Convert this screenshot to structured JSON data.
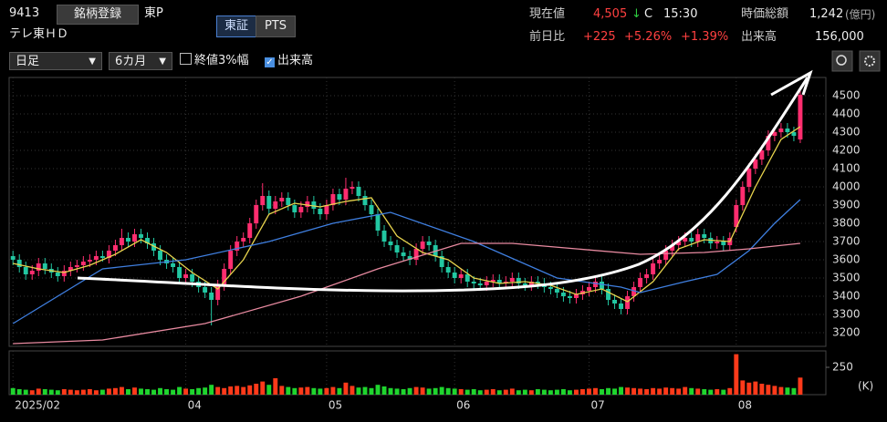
{
  "header": {
    "code": "9413",
    "register": "銘柄登録",
    "market": "東P",
    "name": "テレ東ＨＤ",
    "tab_tse": "東証",
    "tab_pts": "PTS",
    "price_label": "現在値",
    "price": "4,505",
    "arrow": "↓",
    "close_mark": "C",
    "time": "15:30",
    "cap_label": "時価総額",
    "cap": "1,242",
    "cap_unit": "(億円)",
    "change_label": "前日比",
    "change": "+225",
    "change_pct": "+5.26%",
    "index_pct": "+1.39%",
    "volume_label": "出来高",
    "volume": "156,000"
  },
  "controls": {
    "period": "日足",
    "range": "6カ月",
    "check_3pct": "終値3%幅",
    "check_volume": "出来高"
  },
  "chart_data": {
    "type": "candlestick",
    "up_color": "#ff2d6f",
    "down_color": "#22c7a2",
    "grid": true,
    "ylim": [
      3125,
      4600
    ],
    "yticks": [
      3200,
      3300,
      3400,
      3500,
      3600,
      3700,
      3800,
      3900,
      4000,
      4100,
      4200,
      4300,
      4400,
      4500
    ],
    "xlim": [
      -0.6,
      127
    ],
    "xticks": [
      {
        "value": 0,
        "label": "2025/02"
      },
      {
        "value": 27,
        "label": "04"
      },
      {
        "value": 49,
        "label": "05"
      },
      {
        "value": 69,
        "label": "06"
      },
      {
        "value": 90,
        "label": "07"
      },
      {
        "value": 113,
        "label": "08"
      }
    ],
    "open": [
      3620,
      3600,
      3560,
      3520,
      3540,
      3580,
      3550,
      3530,
      3510,
      3540,
      3560,
      3570,
      3590,
      3600,
      3620,
      3610,
      3650,
      3680,
      3720,
      3700,
      3740,
      3720,
      3690,
      3650,
      3600,
      3580,
      3560,
      3500,
      3520,
      3480,
      3450,
      3420,
      3380,
      3460,
      3550,
      3650,
      3700,
      3720,
      3800,
      3900,
      3950,
      3880,
      3920,
      3940,
      3900,
      3860,
      3890,
      3920,
      3880,
      3850,
      3900,
      3960,
      3930,
      3990,
      4000,
      3950,
      3900,
      3850,
      3760,
      3700,
      3680,
      3640,
      3620,
      3600,
      3660,
      3700,
      3680,
      3620,
      3560,
      3530,
      3500,
      3520,
      3480,
      3470,
      3460,
      3480,
      3490,
      3470,
      3480,
      3500,
      3470,
      3460,
      3480,
      3470,
      3450,
      3440,
      3420,
      3400,
      3390,
      3410,
      3430,
      3450,
      3480,
      3440,
      3380,
      3360,
      3330,
      3400,
      3450,
      3500,
      3520,
      3580,
      3600,
      3650,
      3680,
      3700,
      3720,
      3700,
      3740,
      3720,
      3690,
      3700,
      3680,
      3780,
      3900,
      4000,
      4100,
      4150,
      4200,
      4280,
      4300,
      4320,
      4300,
      4260
    ],
    "high": [
      3650,
      3630,
      3590,
      3570,
      3610,
      3610,
      3580,
      3560,
      3570,
      3590,
      3600,
      3620,
      3630,
      3650,
      3650,
      3680,
      3710,
      3770,
      3750,
      3770,
      3770,
      3750,
      3720,
      3680,
      3630,
      3610,
      3590,
      3550,
      3550,
      3510,
      3480,
      3450,
      3490,
      3580,
      3680,
      3730,
      3750,
      3830,
      3930,
      4020,
      3980,
      3950,
      3970,
      3970,
      3930,
      3920,
      3950,
      3950,
      3910,
      3930,
      3990,
      3990,
      4050,
      4030,
      4030,
      3980,
      3930,
      3880,
      3790,
      3730,
      3710,
      3670,
      3650,
      3690,
      3730,
      3730,
      3710,
      3650,
      3590,
      3560,
      3550,
      3550,
      3510,
      3500,
      3510,
      3520,
      3520,
      3510,
      3530,
      3530,
      3500,
      3510,
      3510,
      3500,
      3480,
      3470,
      3450,
      3430,
      3440,
      3460,
      3480,
      3510,
      3510,
      3470,
      3410,
      3390,
      3430,
      3480,
      3530,
      3550,
      3610,
      3630,
      3680,
      3710,
      3730,
      3750,
      3750,
      3770,
      3770,
      3750,
      3730,
      3730,
      3750,
      3930,
      4030,
      4130,
      4180,
      4230,
      4310,
      4330,
      4350,
      4350,
      4330,
      4530
    ],
    "low": [
      3570,
      3530,
      3490,
      3490,
      3510,
      3520,
      3500,
      3480,
      3480,
      3510,
      3530,
      3540,
      3560,
      3570,
      3590,
      3580,
      3620,
      3650,
      3670,
      3670,
      3690,
      3660,
      3620,
      3570,
      3550,
      3530,
      3470,
      3470,
      3450,
      3420,
      3390,
      3240,
      3350,
      3430,
      3520,
      3620,
      3670,
      3690,
      3770,
      3870,
      3850,
      3850,
      3890,
      3870,
      3830,
      3830,
      3860,
      3850,
      3820,
      3820,
      3870,
      3900,
      3900,
      3960,
      3920,
      3870,
      3820,
      3730,
      3670,
      3650,
      3610,
      3590,
      3570,
      3570,
      3630,
      3650,
      3590,
      3530,
      3500,
      3470,
      3470,
      3450,
      3440,
      3430,
      3430,
      3450,
      3440,
      3440,
      3450,
      3440,
      3430,
      3430,
      3440,
      3420,
      3410,
      3390,
      3370,
      3360,
      3360,
      3380,
      3400,
      3420,
      3410,
      3350,
      3330,
      3300,
      3300,
      3370,
      3420,
      3470,
      3490,
      3550,
      3570,
      3620,
      3650,
      3670,
      3670,
      3670,
      3690,
      3660,
      3660,
      3650,
      3650,
      3750,
      3870,
      3970,
      4070,
      4120,
      4170,
      4250,
      4270,
      4270,
      4250,
      4240
    ],
    "close": [
      3600,
      3560,
      3520,
      3540,
      3580,
      3550,
      3530,
      3510,
      3540,
      3560,
      3570,
      3590,
      3600,
      3620,
      3610,
      3650,
      3680,
      3720,
      3700,
      3740,
      3720,
      3690,
      3650,
      3600,
      3580,
      3560,
      3500,
      3520,
      3480,
      3450,
      3420,
      3380,
      3460,
      3550,
      3650,
      3700,
      3720,
      3800,
      3900,
      3950,
      3880,
      3920,
      3940,
      3900,
      3860,
      3890,
      3920,
      3880,
      3850,
      3900,
      3960,
      3930,
      3990,
      4000,
      3950,
      3900,
      3850,
      3760,
      3700,
      3680,
      3640,
      3620,
      3600,
      3660,
      3700,
      3680,
      3620,
      3560,
      3530,
      3500,
      3520,
      3480,
      3470,
      3460,
      3480,
      3490,
      3470,
      3480,
      3500,
      3470,
      3460,
      3480,
      3470,
      3450,
      3440,
      3420,
      3400,
      3390,
      3410,
      3430,
      3450,
      3480,
      3440,
      3380,
      3360,
      3330,
      3400,
      3450,
      3500,
      3520,
      3580,
      3600,
      3650,
      3680,
      3700,
      3720,
      3700,
      3740,
      3720,
      3690,
      3700,
      3680,
      3720,
      3900,
      4000,
      4100,
      4150,
      4200,
      4280,
      4300,
      4320,
      4300,
      4280,
      4505
    ],
    "series": [
      {
        "color": "#e8d44d",
        "x": [
          0,
          4,
          8,
          12,
          16,
          20,
          24,
          28,
          32,
          36,
          40,
          44,
          48,
          52,
          56,
          60,
          64,
          68,
          72,
          76,
          80,
          84,
          88,
          92,
          96,
          100,
          104,
          108,
          112,
          116,
          120,
          123
        ],
        "values": [
          3580,
          3550,
          3530,
          3570,
          3630,
          3710,
          3640,
          3530,
          3440,
          3600,
          3850,
          3910,
          3890,
          3920,
          3940,
          3730,
          3640,
          3600,
          3500,
          3470,
          3480,
          3460,
          3410,
          3440,
          3370,
          3480,
          3660,
          3710,
          3700,
          4000,
          4260,
          4330
        ]
      },
      {
        "color": "#3f7fe0",
        "x": [
          0,
          14,
          27,
          40,
          50,
          59,
          72,
          85,
          95,
          98,
          105,
          110,
          115,
          119,
          123
        ],
        "values": [
          3250,
          3550,
          3600,
          3700,
          3800,
          3860,
          3700,
          3500,
          3450,
          3420,
          3480,
          3520,
          3650,
          3800,
          3930
        ]
      },
      {
        "color": "#e88aa0",
        "x": [
          0,
          14,
          30,
          45,
          57,
          70,
          78,
          88,
          98,
          108,
          115,
          123
        ],
        "values": [
          3140,
          3160,
          3250,
          3400,
          3550,
          3690,
          3690,
          3660,
          3630,
          3640,
          3660,
          3690
        ]
      }
    ],
    "volume": {
      "ylim": [
        0,
        375
      ],
      "yticks": [
        250
      ],
      "unit": "(K)",
      "up_color": "#ff3a1a",
      "down_color": "#1fd52e",
      "values": [
        60,
        50,
        45,
        40,
        55,
        50,
        45,
        40,
        50,
        45,
        40,
        45,
        50,
        40,
        45,
        55,
        60,
        70,
        50,
        65,
        55,
        50,
        45,
        60,
        50,
        45,
        70,
        55,
        50,
        60,
        65,
        90,
        70,
        60,
        75,
        80,
        70,
        85,
        100,
        120,
        90,
        150,
        80,
        70,
        60,
        65,
        70,
        60,
        55,
        60,
        70,
        60,
        110,
        80,
        65,
        70,
        60,
        90,
        75,
        60,
        55,
        50,
        60,
        70,
        65,
        55,
        60,
        70,
        60,
        55,
        50,
        45,
        50,
        40,
        45,
        50,
        40,
        45,
        55,
        40,
        45,
        40,
        50,
        45,
        40,
        45,
        50,
        40,
        45,
        50,
        55,
        60,
        50,
        60,
        55,
        70,
        65,
        60,
        55,
        50,
        60,
        55,
        65,
        60,
        55,
        70,
        60,
        55,
        50,
        45,
        50,
        45,
        60,
        370,
        130,
        110,
        120,
        100,
        90,
        80,
        70,
        65,
        60,
        156
      ]
    }
  }
}
